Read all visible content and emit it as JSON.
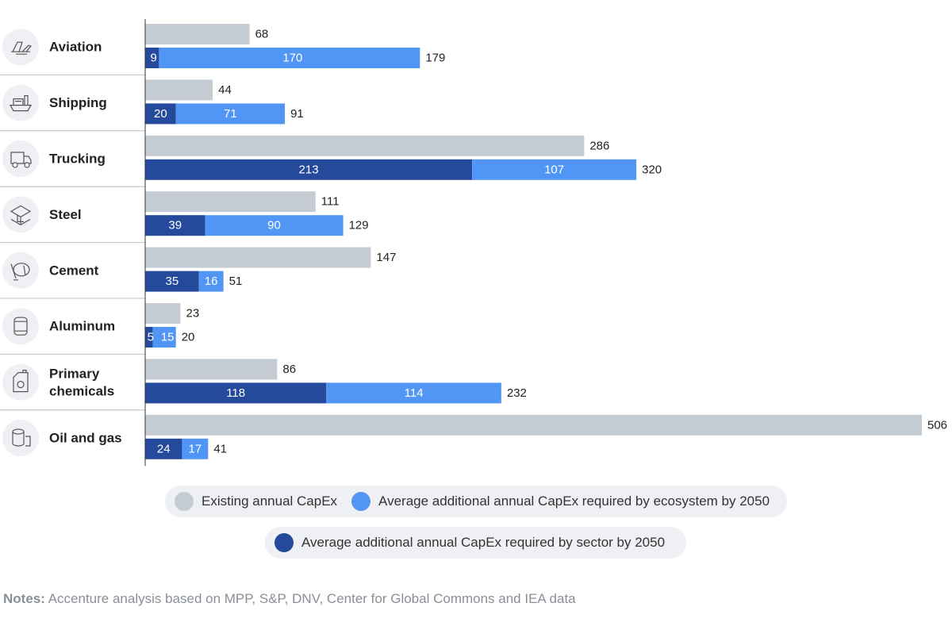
{
  "chart_data": {
    "type": "bar",
    "orientation": "horizontal",
    "categories": [
      "Aviation",
      "Shipping",
      "Trucking",
      "Steel",
      "Cement",
      "Aluminum",
      "Primary chemicals",
      "Oil and gas"
    ],
    "category_icons": [
      "airplane-icon",
      "ship-icon",
      "truck-icon",
      "steel-beam-icon",
      "cement-mixer-icon",
      "can-icon",
      "chemical-container-icon",
      "oil-barrel-icon"
    ],
    "existing": [
      68,
      44,
      286,
      111,
      147,
      23,
      86,
      506
    ],
    "sector": [
      9,
      20,
      213,
      39,
      35,
      5,
      118,
      24
    ],
    "ecosystem": [
      170,
      71,
      107,
      90,
      16,
      15,
      114,
      17
    ],
    "totals": [
      179,
      91,
      320,
      129,
      51,
      20,
      232,
      41
    ],
    "xlim": [
      0,
      506
    ],
    "series": [
      {
        "name": "Existing annual CapEx",
        "color": "#c5cbd3"
      },
      {
        "name": "Average additional annual CapEx required by ecosystem by 2050",
        "color": "#5196f5"
      },
      {
        "name": "Average additional annual CapEx required by sector by 2050",
        "color": "#254a9b"
      }
    ],
    "grid": false,
    "legend_position": "bottom"
  },
  "notes": {
    "label": "Notes:",
    "text": " Accenture analysis based on MPP, S&P, DNV, Center for Global Commons and IEA data"
  }
}
